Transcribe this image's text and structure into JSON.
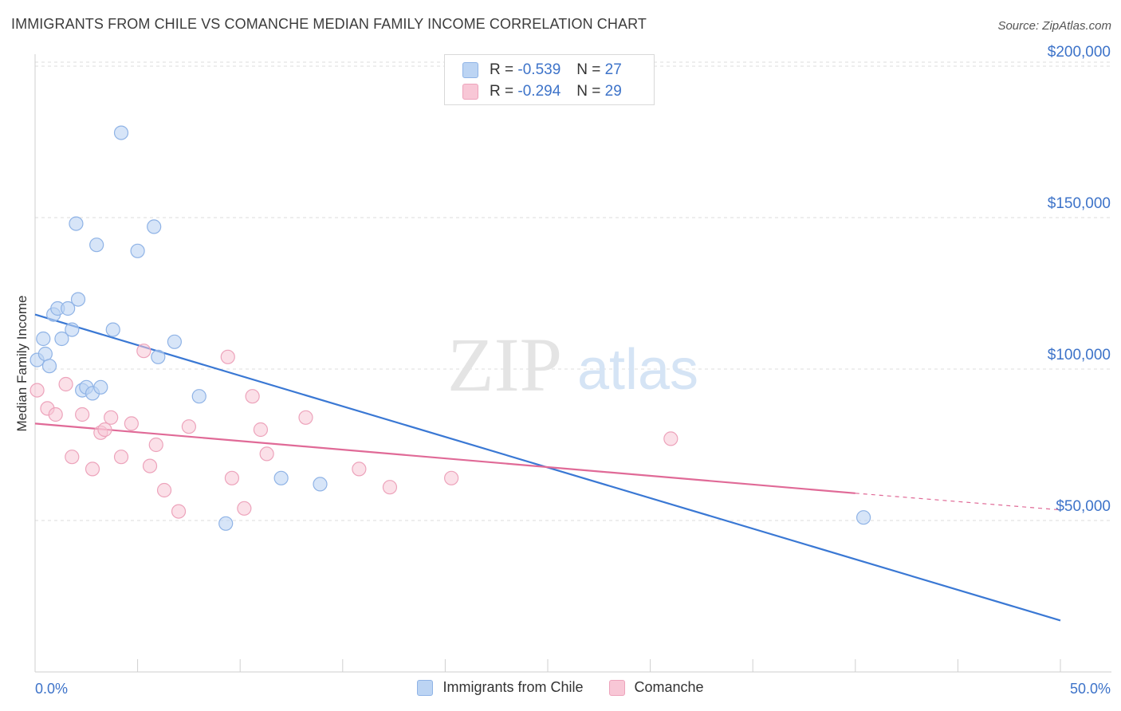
{
  "title": "IMMIGRANTS FROM CHILE VS COMANCHE MEDIAN FAMILY INCOME CORRELATION CHART",
  "source": "Source: ZipAtlas.com",
  "watermark": {
    "zip": "ZIP",
    "atlas": "atlas"
  },
  "colors": {
    "blue": "#3a78d4",
    "blue_fill": "#bcd4f3",
    "blue_edge": "#8fb3e6",
    "pink": "#e06a97",
    "pink_fill": "#f8c7d6",
    "pink_edge": "#eda3bb",
    "grid": "#dcdcdc",
    "axis_label": "#3d73c9"
  },
  "stats": {
    "blue": {
      "r_label": "R =",
      "r_value": "-0.539",
      "n_label": "N =",
      "n_value": "27"
    },
    "pink": {
      "r_label": "R =",
      "r_value": "-0.294",
      "n_label": "N =",
      "n_value": "29"
    }
  },
  "legend": {
    "blue": "Immigrants from Chile",
    "pink": "Comanche"
  },
  "chart_data": {
    "type": "scatter",
    "title": "IMMIGRANTS FROM CHILE VS COMANCHE MEDIAN FAMILY INCOME CORRELATION CHART",
    "xlabel": "",
    "ylabel": "Median Family Income",
    "xlim": [
      0,
      50
    ],
    "ylim": [
      0,
      210000
    ],
    "x_tick_labels": [
      "0.0%",
      "50.0%"
    ],
    "y_ticks": [
      50000,
      100000,
      150000,
      200000
    ],
    "y_tick_labels": [
      "$50,000",
      "$100,000",
      "$150,000",
      "$200,000"
    ],
    "grid": "horizontal dashed",
    "series": [
      {
        "name": "Immigrants from Chile",
        "color": "#3a78d4",
        "points": [
          [
            0.1,
            103000
          ],
          [
            0.4,
            110000
          ],
          [
            0.5,
            105000
          ],
          [
            0.7,
            101000
          ],
          [
            0.9,
            118000
          ],
          [
            1.1,
            120000
          ],
          [
            1.3,
            110000
          ],
          [
            1.6,
            120000
          ],
          [
            1.8,
            113000
          ],
          [
            2.0,
            148000
          ],
          [
            2.1,
            123000
          ],
          [
            2.3,
            93000
          ],
          [
            2.5,
            94000
          ],
          [
            2.8,
            92000
          ],
          [
            3.0,
            141000
          ],
          [
            3.2,
            94000
          ],
          [
            3.8,
            113000
          ],
          [
            4.2,
            178000
          ],
          [
            5.0,
            139000
          ],
          [
            5.8,
            147000
          ],
          [
            6.0,
            104000
          ],
          [
            6.8,
            109000
          ],
          [
            8.0,
            91000
          ],
          [
            9.3,
            49000
          ],
          [
            12.0,
            64000
          ],
          [
            13.9,
            62000
          ],
          [
            40.4,
            51000
          ]
        ],
        "trend": {
          "x": [
            0,
            50
          ],
          "y": [
            118000,
            17000
          ]
        }
      },
      {
        "name": "Comanche",
        "color": "#e06a97",
        "points": [
          [
            0.1,
            93000
          ],
          [
            0.6,
            87000
          ],
          [
            1.0,
            85000
          ],
          [
            1.5,
            95000
          ],
          [
            1.8,
            71000
          ],
          [
            2.3,
            85000
          ],
          [
            2.8,
            67000
          ],
          [
            3.2,
            79000
          ],
          [
            3.4,
            80000
          ],
          [
            3.7,
            84000
          ],
          [
            4.2,
            71000
          ],
          [
            4.7,
            82000
          ],
          [
            5.3,
            106000
          ],
          [
            5.6,
            68000
          ],
          [
            5.9,
            75000
          ],
          [
            6.3,
            60000
          ],
          [
            7.0,
            53000
          ],
          [
            7.5,
            81000
          ],
          [
            9.4,
            104000
          ],
          [
            9.6,
            64000
          ],
          [
            10.2,
            54000
          ],
          [
            10.6,
            91000
          ],
          [
            11.0,
            80000
          ],
          [
            11.3,
            72000
          ],
          [
            13.2,
            84000
          ],
          [
            15.8,
            67000
          ],
          [
            17.3,
            61000
          ],
          [
            20.3,
            64000
          ],
          [
            31.0,
            77000
          ]
        ],
        "trend": {
          "x": [
            0,
            40
          ],
          "y": [
            82000,
            59000
          ]
        },
        "trend_dashed": {
          "x": [
            40,
            50
          ],
          "y": [
            59000,
            53500
          ]
        }
      }
    ]
  }
}
